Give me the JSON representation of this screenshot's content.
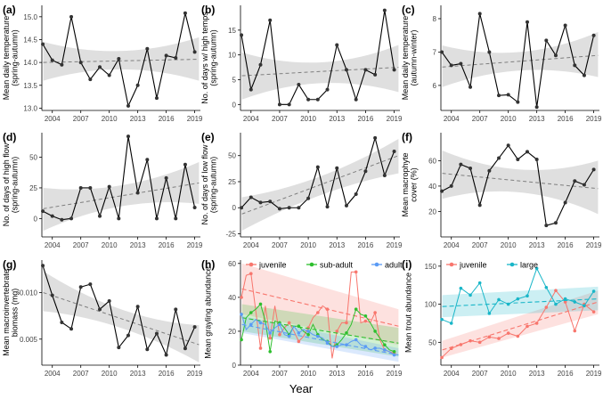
{
  "figure": {
    "xlabel_common": "Year"
  },
  "colors": {
    "line": "#000000",
    "trend": "#7f7f7f",
    "band": "#d9d9d9",
    "juvenile": "#f8766d",
    "subadult": "#2ebf2e",
    "adult": "#5a9bf5",
    "large": "#19b6c8"
  },
  "chart_data": [
    {
      "id": "a",
      "type": "line",
      "panel_label": "(a)",
      "ylabel": "Mean daily temperature\n(spring-autumn)",
      "xlim": [
        2002.9,
        2019.6
      ],
      "ylim": [
        12.95,
        15.25
      ],
      "yticks": [
        13.0,
        13.5,
        14.0,
        14.5,
        15.0
      ],
      "ytick_labels": [
        "13.0",
        "13.5",
        "14.0",
        "14.5",
        "15.0"
      ],
      "xticks": [
        2004,
        2007,
        2010,
        2013,
        2016,
        2019
      ],
      "xtick_labels": [
        "2004",
        "2007",
        "2010",
        "2013",
        "2016",
        "2019"
      ],
      "series": [
        {
          "name": "observed",
          "x": [
            2003,
            2004,
            2005,
            2006,
            2007,
            2008,
            2009,
            2010,
            2011,
            2012,
            2013,
            2014,
            2015,
            2016,
            2017,
            2018,
            2019
          ],
          "values": [
            14.4,
            14.05,
            13.95,
            15.0,
            14.0,
            13.63,
            13.9,
            13.72,
            14.08,
            13.05,
            13.5,
            14.3,
            13.22,
            14.15,
            14.1,
            15.08,
            14.23
          ]
        }
      ],
      "trend": {
        "start": 14.0,
        "end": 14.07,
        "band_start": [
          13.6,
          14.45
        ],
        "band_mid": [
          13.85,
          14.25
        ],
        "band_end": [
          13.6,
          14.55
        ]
      }
    },
    {
      "id": "b",
      "type": "line",
      "panel_label": "(b)",
      "ylabel": "No. of days w/ high temps\n(spring-autumn)",
      "xlim": [
        2002.9,
        2019.6
      ],
      "ylim": [
        -1.2,
        20
      ],
      "yticks": [
        0,
        5,
        10,
        15
      ],
      "ytick_labels": [
        "0",
        "5",
        "10",
        "15"
      ],
      "xticks": [
        2004,
        2007,
        2010,
        2013,
        2016,
        2019
      ],
      "xtick_labels": [
        "2004",
        "2007",
        "2010",
        "2013",
        "2016",
        "2019"
      ],
      "series": [
        {
          "name": "observed",
          "x": [
            2003,
            2004,
            2005,
            2006,
            2007,
            2008,
            2009,
            2010,
            2011,
            2012,
            2013,
            2014,
            2015,
            2016,
            2017,
            2018,
            2019
          ],
          "values": [
            14,
            3,
            8,
            17,
            0,
            0,
            4,
            1,
            1,
            3,
            12,
            7,
            1,
            7,
            6,
            19,
            7
          ]
        }
      ],
      "trend": {
        "start": 5.8,
        "end": 7.5,
        "band_start": [
          1,
          10.5
        ],
        "band_mid": [
          4.3,
          8.5
        ],
        "band_end": [
          2.5,
          12
        ]
      }
    },
    {
      "id": "c",
      "type": "line",
      "panel_label": "(c)",
      "ylabel": "Mean daily temperature\n(autumn-winter)",
      "xlim": [
        2002.9,
        2019.6
      ],
      "ylim": [
        5.25,
        8.4
      ],
      "yticks": [
        6,
        7,
        8
      ],
      "ytick_labels": [
        "6",
        "7",
        "8"
      ],
      "xticks": [
        2004,
        2007,
        2010,
        2013,
        2016,
        2019
      ],
      "xtick_labels": [
        "2004",
        "2007",
        "2010",
        "2013",
        "2016",
        "2019"
      ],
      "series": [
        {
          "name": "observed",
          "x": [
            2003,
            2004,
            2005,
            2006,
            2007,
            2008,
            2009,
            2010,
            2011,
            2012,
            2013,
            2014,
            2015,
            2016,
            2017,
            2018,
            2019
          ],
          "values": [
            7.0,
            6.6,
            6.65,
            5.95,
            8.15,
            7.0,
            5.7,
            5.72,
            5.5,
            7.9,
            5.35,
            7.35,
            6.9,
            7.8,
            6.6,
            6.3,
            7.5
          ]
        }
      ],
      "trend": {
        "start": 6.55,
        "end": 6.9,
        "band_start": [
          5.95,
          7.2
        ],
        "band_mid": [
          6.45,
          7.0
        ],
        "band_end": [
          6.25,
          7.6
        ]
      }
    },
    {
      "id": "d",
      "type": "line",
      "panel_label": "(d)",
      "ylabel": "No. of days of high flow\n(spring-autumn)",
      "xlim": [
        2002.9,
        2019.6
      ],
      "ylim": [
        -15,
        70
      ],
      "yticks": [
        0,
        25,
        50
      ],
      "ytick_labels": [
        "0",
        "25",
        "50"
      ],
      "xticks": [
        2004,
        2007,
        2010,
        2013,
        2016,
        2019
      ],
      "xtick_labels": [
        "2004",
        "2007",
        "2010",
        "2013",
        "2016",
        "2019"
      ],
      "series": [
        {
          "name": "observed",
          "x": [
            2003,
            2004,
            2005,
            2006,
            2007,
            2008,
            2009,
            2010,
            2011,
            2012,
            2013,
            2014,
            2015,
            2016,
            2017,
            2018,
            2019
          ],
          "values": [
            6,
            2,
            -1,
            0,
            25,
            25,
            2,
            26,
            0,
            67,
            21,
            48,
            0,
            33,
            0,
            44,
            9
          ]
        }
      ],
      "trend": {
        "start": 8,
        "end": 29,
        "band_start": [
          -10,
          25
        ],
        "band_mid": [
          10,
          27
        ],
        "band_end": [
          12,
          46
        ]
      }
    },
    {
      "id": "e",
      "type": "line",
      "panel_label": "(e)",
      "ylabel": "No. of days of low flow\n(spring-autumn)",
      "xlim": [
        2002.9,
        2019.6
      ],
      "ylim": [
        -28,
        72
      ],
      "yticks": [
        -25,
        0,
        25,
        50
      ],
      "ytick_labels": [
        "-25",
        "0",
        "25",
        "50"
      ],
      "xticks": [
        2004,
        2007,
        2010,
        2013,
        2016,
        2019
      ],
      "xtick_labels": [
        "2004",
        "2007",
        "2010",
        "2013",
        "2016",
        "2019"
      ],
      "series": [
        {
          "name": "observed",
          "x": [
            2003,
            2004,
            2005,
            2006,
            2007,
            2008,
            2009,
            2010,
            2011,
            2012,
            2013,
            2014,
            2015,
            2016,
            2017,
            2018,
            2019
          ],
          "values": [
            0,
            10,
            5,
            6,
            -1,
            0,
            0,
            9,
            39,
            1,
            38,
            2,
            13,
            35,
            67,
            31,
            54
          ]
        }
      ],
      "trend": {
        "start": -6,
        "end": 50,
        "band_start": [
          -22,
          10
        ],
        "band_mid": [
          12,
          30
        ],
        "band_end": [
          33,
          66
        ]
      }
    },
    {
      "id": "f",
      "type": "line",
      "panel_label": "(f)",
      "ylabel": "Mean macrophyte\ncover (%)",
      "xlim": [
        2002.9,
        2019.6
      ],
      "ylim": [
        0,
        82
      ],
      "yticks": [
        20,
        40,
        60
      ],
      "ytick_labels": [
        "20",
        "40",
        "60"
      ],
      "xticks": [
        2004,
        2007,
        2010,
        2013,
        2016,
        2019
      ],
      "xtick_labels": [
        "2004",
        "2007",
        "2010",
        "2013",
        "2016",
        "2019"
      ],
      "series": [
        {
          "name": "observed",
          "x": [
            2003,
            2004,
            2005,
            2006,
            2007,
            2008,
            2009,
            2010,
            2011,
            2012,
            2013,
            2014,
            2015,
            2016,
            2017,
            2018,
            2019
          ],
          "values": [
            36,
            40,
            57,
            54,
            25,
            52,
            62,
            72,
            61,
            67,
            61,
            9,
            11,
            27,
            44,
            41,
            53
          ]
        }
      ],
      "trend": {
        "start": 50,
        "end": 38,
        "band_start": [
          30,
          68
        ],
        "band_mid": [
          35,
          53
        ],
        "band_end": [
          18,
          60
        ]
      }
    },
    {
      "id": "g",
      "type": "line",
      "panel_label": "(g)",
      "ylabel": "Mean macroinvertebrate\nbiomass (mg)",
      "xlim": [
        2002.9,
        2019.6
      ],
      "ylim": [
        0.0022,
        0.0135
      ],
      "yticks": [
        0.005,
        0.01
      ],
      "ytick_labels": [
        "0.005",
        "0.010"
      ],
      "xticks": [
        2004,
        2007,
        2010,
        2013,
        2016,
        2019
      ],
      "xtick_labels": [
        "2004",
        "2007",
        "2010",
        "2013",
        "2016",
        "2019"
      ],
      "series": [
        {
          "name": "observed",
          "x": [
            2003,
            2004,
            2005,
            2006,
            2007,
            2008,
            2009,
            2010,
            2011,
            2012,
            2013,
            2014,
            2015,
            2016,
            2017,
            2018,
            2019
          ],
          "values": [
            0.0129,
            0.0097,
            0.0068,
            0.0061,
            0.0106,
            0.0109,
            0.0082,
            0.0091,
            0.0041,
            0.0054,
            0.0085,
            0.0039,
            0.0056,
            0.0033,
            0.0082,
            0.004,
            0.0063
          ]
        }
      ],
      "trend": {
        "start": 0.01,
        "end": 0.0044,
        "band_start": [
          0.008,
          0.0123
        ],
        "band_mid": [
          0.0062,
          0.0082
        ],
        "band_end": [
          0.0025,
          0.0065
        ]
      }
    },
    {
      "id": "h",
      "type": "line",
      "panel_label": "(h)",
      "ylabel": "Mean grayling abundance",
      "xlim": [
        2002.9,
        2019.6
      ],
      "ylim": [
        0,
        62
      ],
      "yticks": [
        0,
        20,
        40,
        60
      ],
      "ytick_labels": [
        "0",
        "20",
        "40",
        "60"
      ],
      "xticks": [
        2004,
        2007,
        2010,
        2013,
        2016,
        2019
      ],
      "xtick_labels": [
        "2004",
        "2007",
        "2010",
        "2013",
        "2016",
        "2019"
      ],
      "legend": [
        "juvenile",
        "sub-adult",
        "adult"
      ],
      "series": [
        {
          "name": "juvenile",
          "color_key": "juvenile",
          "x": [
            2003,
            2003.5,
            2004,
            2004.5,
            2005,
            2005.5,
            2006,
            2006.5,
            2007,
            2007.5,
            2008,
            2008.5,
            2009,
            2009.5,
            2010,
            2010.5,
            2011,
            2011.5,
            2012,
            2012.5,
            2013,
            2013.5,
            2014,
            2014.5,
            2015,
            2015.5,
            2016,
            2016.5,
            2017,
            2017.5,
            2018,
            2018.5,
            2019
          ],
          "values": [
            40,
            53,
            54,
            32,
            10,
            35,
            16,
            35,
            18,
            22,
            25,
            20,
            14,
            17,
            22,
            28,
            31,
            35,
            33,
            4,
            20,
            25,
            25,
            55,
            55,
            25,
            26,
            25,
            31,
            15,
            9,
            8,
            7
          ],
          "trend": {
            "start": 45,
            "end": 23,
            "band_start": [
              30,
              60
            ],
            "band_end": [
              12,
              33
            ]
          }
        },
        {
          "name": "sub-adult",
          "color_key": "subadult",
          "x": [
            2003,
            2003.5,
            2004,
            2004.5,
            2005,
            2005.5,
            2006,
            2006.5,
            2007,
            2007.5,
            2008,
            2008.5,
            2009,
            2009.5,
            2010,
            2010.5,
            2011,
            2011.5,
            2012,
            2012.5,
            2013,
            2013.5,
            2014,
            2014.5,
            2015,
            2015.5,
            2016,
            2016.5,
            2017,
            2017.5,
            2018,
            2018.5,
            2019
          ],
          "values": [
            15,
            28,
            31,
            33,
            36,
            26,
            8,
            26,
            25,
            22,
            18,
            23,
            23,
            20,
            18,
            24,
            18,
            15,
            14,
            11,
            12,
            15,
            19,
            24,
            33,
            30,
            29,
            25,
            20,
            16,
            12,
            9,
            8
          ],
          "trend": {
            "start": 28,
            "end": 13,
            "band_start": [
              20,
              36
            ],
            "band_end": [
              5,
              22
            ]
          }
        },
        {
          "name": "adult",
          "color_key": "adult",
          "x": [
            2003,
            2003.5,
            2004,
            2004.5,
            2005,
            2005.5,
            2006,
            2006.5,
            2007,
            2007.5,
            2008,
            2008.5,
            2009,
            2009.5,
            2010,
            2010.5,
            2011,
            2011.5,
            2012,
            2012.5,
            2013,
            2013.5,
            2014,
            2014.5,
            2015,
            2015.5,
            2016,
            2016.5,
            2017,
            2017.5,
            2018,
            2018.5,
            2019
          ],
          "values": [
            30,
            21,
            24,
            27,
            25,
            24,
            19,
            22,
            24,
            18,
            17,
            23,
            19,
            21,
            20,
            18,
            17,
            16,
            13,
            11,
            11,
            12,
            12,
            14,
            15,
            12,
            11,
            9,
            10,
            10,
            9,
            8,
            6
          ],
          "trend": {
            "start": 24,
            "end": 6,
            "band_start": [
              19,
              29
            ],
            "band_end": [
              2,
              10
            ]
          }
        }
      ]
    },
    {
      "id": "i",
      "type": "line",
      "panel_label": "(i)",
      "ylabel": "Mean trout abundance",
      "xlim": [
        2002.9,
        2019.6
      ],
      "ylim": [
        20,
        158
      ],
      "yticks": [
        50,
        100,
        150
      ],
      "ytick_labels": [
        "50",
        "100",
        "150"
      ],
      "xticks": [
        2004,
        2007,
        2010,
        2013,
        2016,
        2019
      ],
      "xtick_labels": [
        "2004",
        "2007",
        "2010",
        "2013",
        "2016",
        "2019"
      ],
      "legend": [
        "juvenile",
        "large"
      ],
      "series": [
        {
          "name": "juvenile",
          "color_key": "juvenile",
          "x": [
            2003,
            2004,
            2005,
            2006,
            2007,
            2008,
            2009,
            2010,
            2011,
            2012,
            2013,
            2014,
            2015,
            2016,
            2017,
            2018,
            2019
          ],
          "values": [
            30,
            42,
            47,
            52,
            50,
            57,
            55,
            62,
            58,
            71,
            75,
            96,
            118,
            103,
            65,
            100,
            90
          ],
          "trend": {
            "start": 40,
            "end": 103,
            "band_start": [
              30,
              52
            ],
            "band_end": [
              87,
              118
            ]
          }
        },
        {
          "name": "large",
          "color_key": "large",
          "x": [
            2003,
            2004,
            2005,
            2006,
            2007,
            2008,
            2009,
            2010,
            2011,
            2012,
            2013,
            2014,
            2015,
            2016,
            2017,
            2018,
            2019
          ],
          "values": [
            80,
            75,
            121,
            112,
            128,
            88,
            106,
            100,
            107,
            111,
            147,
            122,
            100,
            107,
            103,
            98,
            117
          ],
          "trend": {
            "start": 97,
            "end": 107,
            "band_start": [
              83,
              112
            ],
            "band_end": [
              92,
              123
            ]
          }
        }
      ]
    }
  ]
}
